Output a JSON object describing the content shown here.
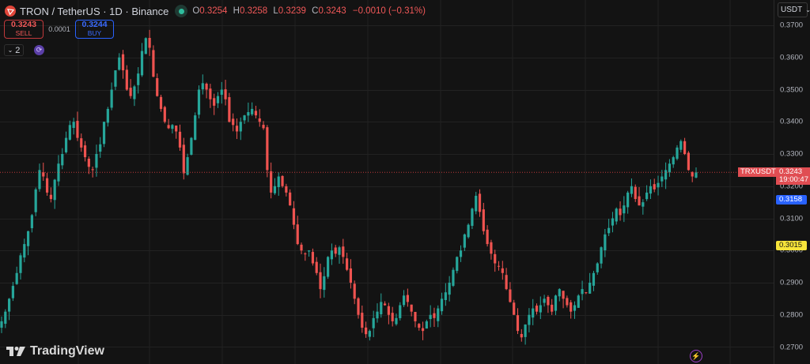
{
  "header": {
    "symbol_title": "TRON / TetherUS · 1D · Binance",
    "ohlc": {
      "o_label": "O",
      "o": "0.3254",
      "h_label": "H",
      "h": "0.3258",
      "l_label": "L",
      "l": "0.3239",
      "c_label": "C",
      "c": "0.3243",
      "change": "−0.0010 (−0.31%)"
    }
  },
  "trade": {
    "sell_price": "0.3243",
    "sell_label": "SELL",
    "spread": "0.0001",
    "buy_price": "0.3244",
    "buy_label": "BUY"
  },
  "indicators": {
    "collapse_count": "2"
  },
  "branding": {
    "name": "TradingView"
  },
  "price_axis": {
    "currency": "USDT",
    "ticks": [
      "0.3700",
      "0.3600",
      "0.3500",
      "0.3400",
      "0.3300",
      "0.3200",
      "0.3100",
      "0.3000",
      "0.2900",
      "0.2800",
      "0.2700"
    ],
    "last_symbol": "TRXUSDT",
    "last_price": "0.3243",
    "countdown": "19:00:47",
    "blue_level": "0.3158",
    "yellow_level": "0.3015"
  },
  "colors": {
    "up": "#26a69a",
    "down": "#ef5350",
    "background": "#131313",
    "grid": "#222222",
    "blue_label": "#2962ff",
    "yellow_label": "#f7e43a"
  },
  "chart_data": {
    "type": "candlestick",
    "title": "TRON / TetherUS · 1D · Binance",
    "xlabel": "",
    "ylabel": "USDT",
    "ylim": [
      0.2675,
      0.3705
    ],
    "grid": true,
    "last_close": 0.3243,
    "approx_close_path": [
      0.278,
      0.281,
      0.285,
      0.289,
      0.293,
      0.2985,
      0.302,
      0.306,
      0.311,
      0.319,
      0.325,
      0.323,
      0.318,
      0.316,
      0.322,
      0.327,
      0.33,
      0.335,
      0.339,
      0.34,
      0.335,
      0.332,
      0.329,
      0.326,
      0.325,
      0.33,
      0.333,
      0.34,
      0.344,
      0.35,
      0.356,
      0.36,
      0.356,
      0.35,
      0.348,
      0.351,
      0.355,
      0.362,
      0.366,
      0.363,
      0.354,
      0.348,
      0.344,
      0.34,
      0.338,
      0.339,
      0.337,
      0.332,
      0.324,
      0.329,
      0.335,
      0.342,
      0.35,
      0.352,
      0.35,
      0.347,
      0.345,
      0.348,
      0.35,
      0.347,
      0.34,
      0.339,
      0.337,
      0.34,
      0.342,
      0.343,
      0.344,
      0.342,
      0.34,
      0.338,
      0.325,
      0.318,
      0.32,
      0.323,
      0.32,
      0.318,
      0.314,
      0.308,
      0.302,
      0.3,
      0.299,
      0.3,
      0.296,
      0.293,
      0.288,
      0.292,
      0.298,
      0.3,
      0.299,
      0.301,
      0.298,
      0.294,
      0.29,
      0.285,
      0.28,
      0.276,
      0.274,
      0.275,
      0.279,
      0.281,
      0.284,
      0.283,
      0.28,
      0.278,
      0.279,
      0.283,
      0.286,
      0.284,
      0.281,
      0.278,
      0.276,
      0.275,
      0.278,
      0.28,
      0.279,
      0.282,
      0.285,
      0.287,
      0.29,
      0.294,
      0.298,
      0.3,
      0.305,
      0.308,
      0.313,
      0.317,
      0.312,
      0.306,
      0.302,
      0.299,
      0.296,
      0.295,
      0.293,
      0.288,
      0.284,
      0.28,
      0.275,
      0.273,
      0.277,
      0.28,
      0.282,
      0.281,
      0.283,
      0.285,
      0.283,
      0.281,
      0.286,
      0.288,
      0.285,
      0.283,
      0.281,
      0.283,
      0.286,
      0.288,
      0.287,
      0.29,
      0.293,
      0.296,
      0.301,
      0.305,
      0.307,
      0.31,
      0.313,
      0.311,
      0.314,
      0.318,
      0.32,
      0.316,
      0.314,
      0.315,
      0.318,
      0.32,
      0.319,
      0.321,
      0.323,
      0.325,
      0.327,
      0.329,
      0.332,
      0.334,
      0.33,
      0.325,
      0.323,
      0.3243
    ]
  }
}
